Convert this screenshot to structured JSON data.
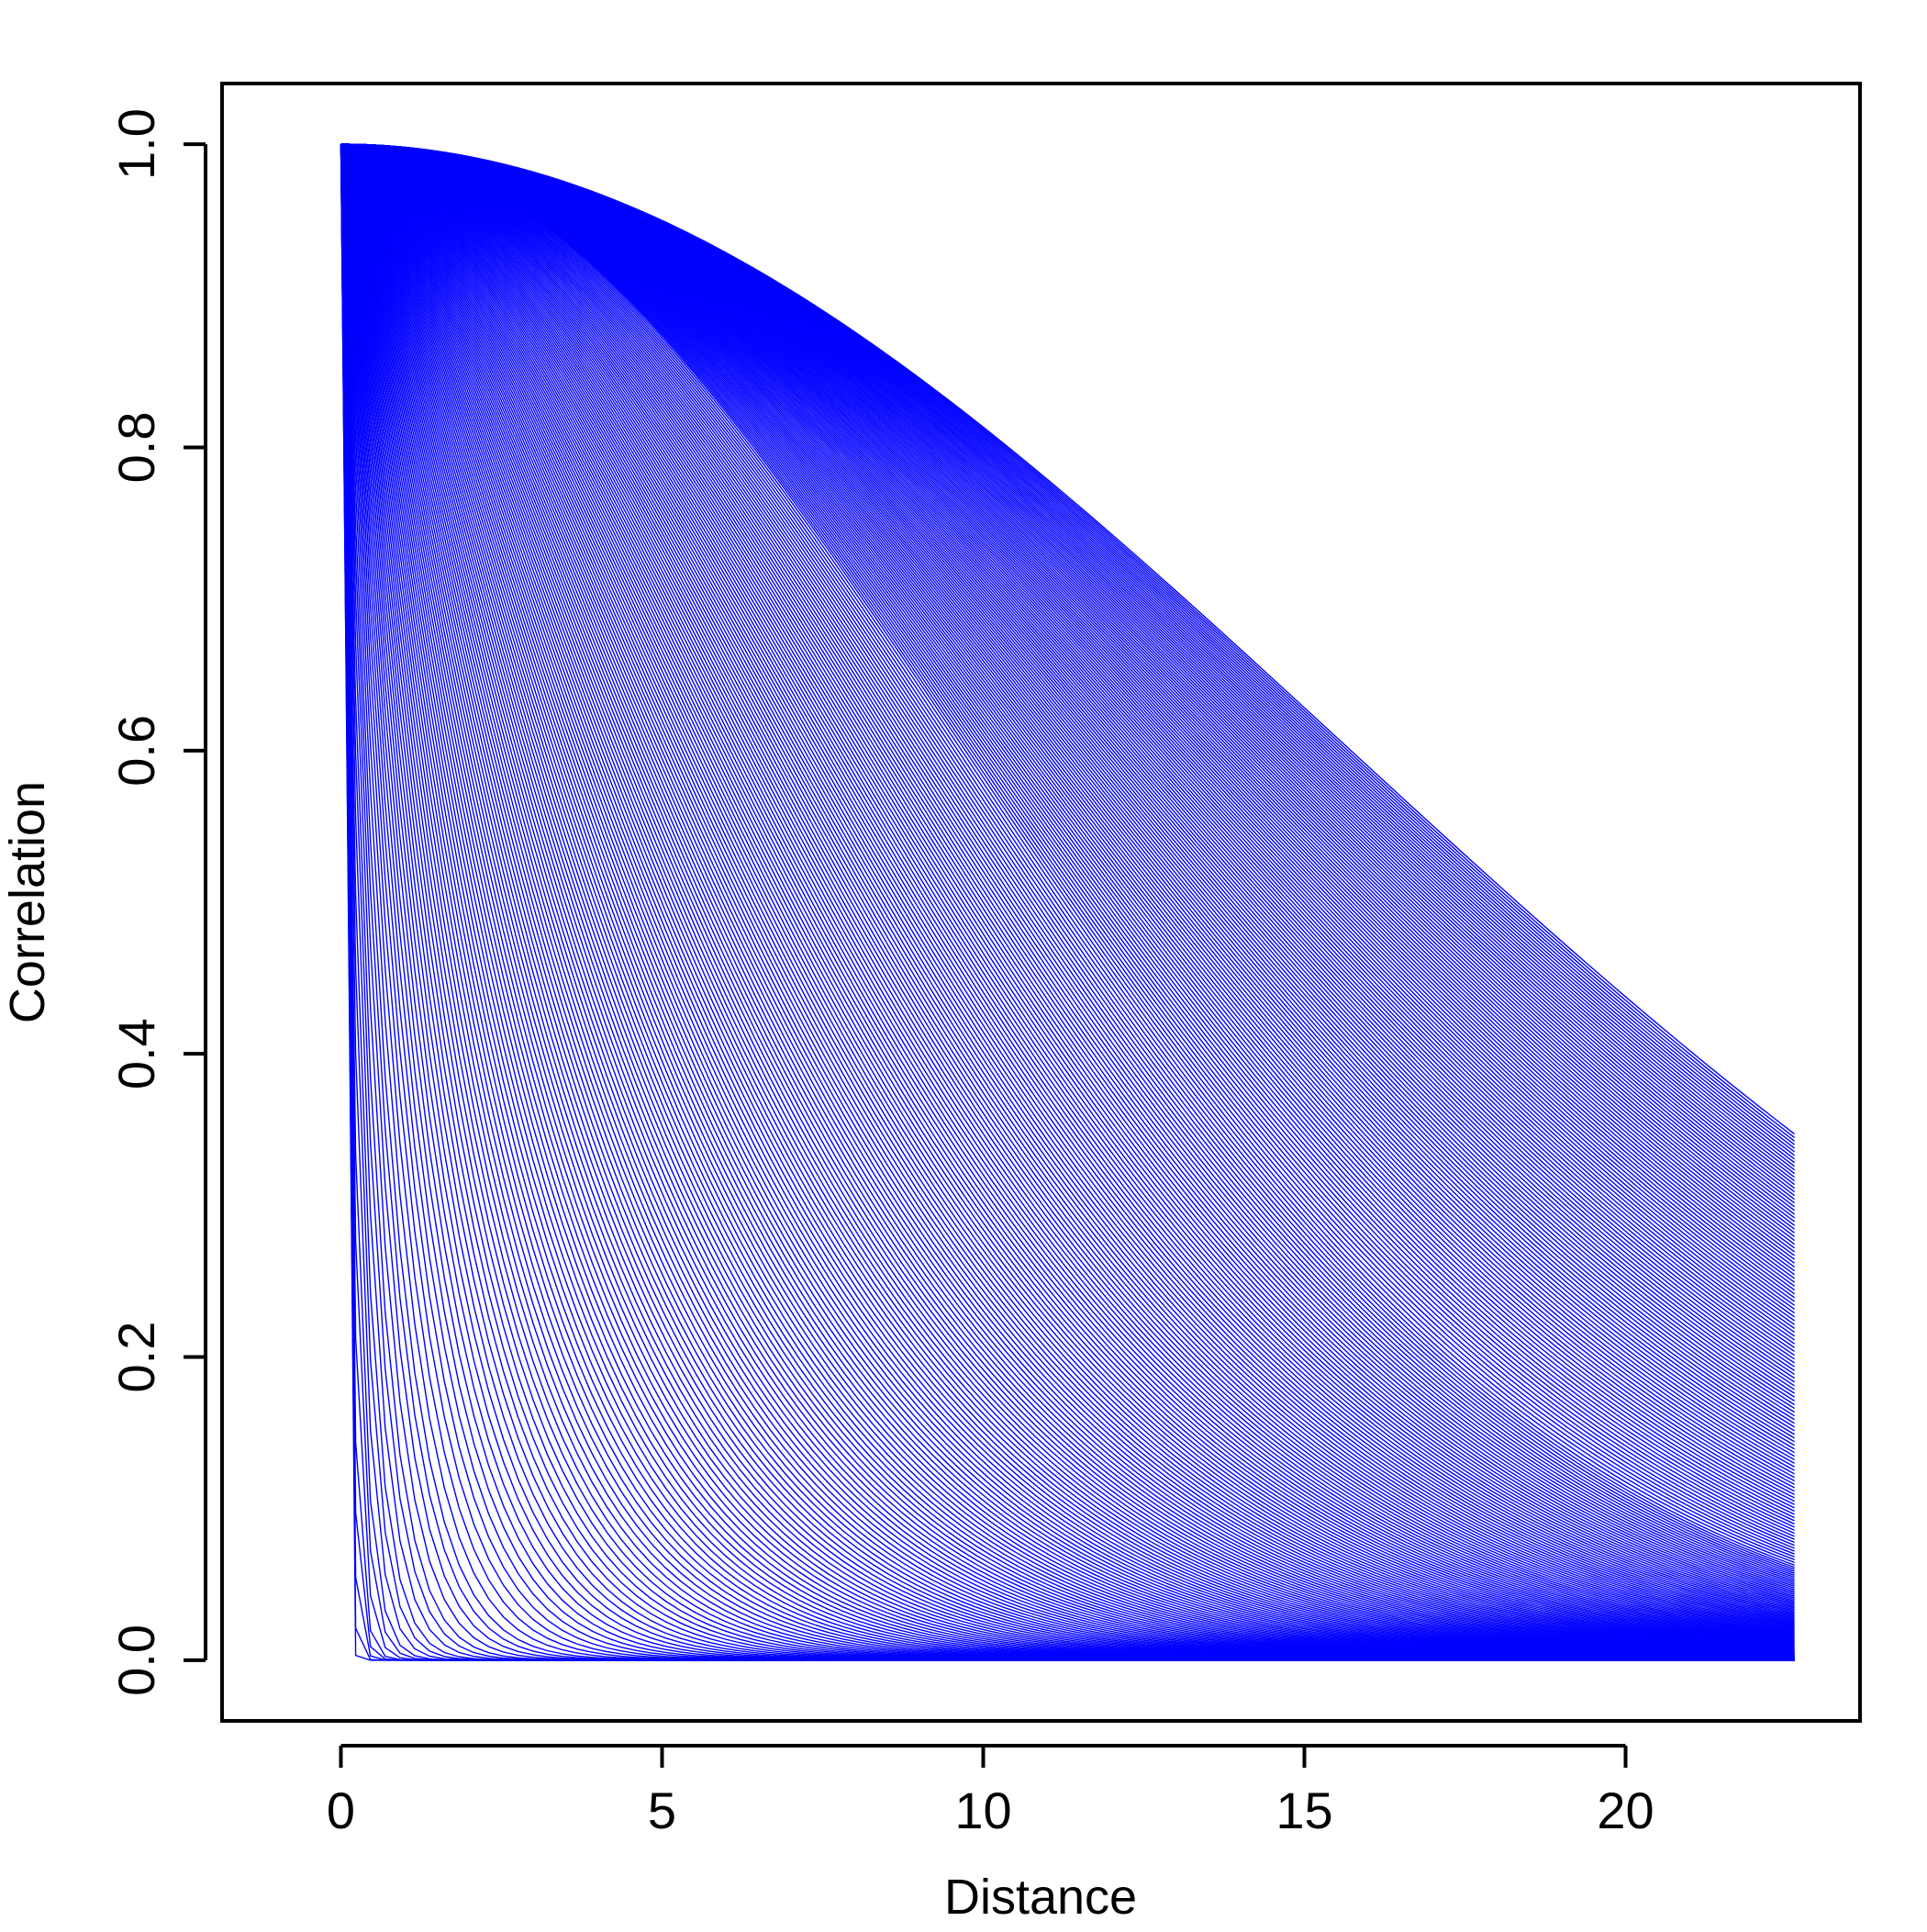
{
  "chart_data": {
    "type": "line",
    "title": "",
    "xlabel": "Distance",
    "ylabel": "Correlation",
    "xlim": [
      -1.85,
      23.65
    ],
    "ylim": [
      -0.04,
      1.04
    ],
    "x_ticks": [
      0,
      5,
      10,
      15,
      20
    ],
    "x_tick_labels": [
      "0",
      "5",
      "10",
      "15",
      "20"
    ],
    "y_ticks": [
      0.0,
      0.2,
      0.4,
      0.6,
      0.8,
      1.0
    ],
    "y_tick_labels": [
      "0.0",
      "0.2",
      "0.4",
      "0.6",
      "0.8",
      "1.0"
    ],
    "grid": false,
    "legend": "none",
    "line_color": "#0000ff",
    "sample_x": [
      0,
      0.23,
      0.46,
      0.69,
      0.92,
      1.15,
      1.38,
      1.61,
      1.84,
      2.07,
      2.3,
      2.53,
      2.76,
      2.99,
      3.22,
      3.45,
      3.68,
      3.91,
      4.14,
      4.37,
      4.6,
      4.83,
      5.06,
      5.29,
      5.52,
      5.75,
      5.98,
      6.21,
      6.44,
      6.67,
      6.9,
      7.13,
      7.36,
      7.59,
      7.82,
      8.05,
      8.28,
      8.51,
      8.74,
      8.97,
      9.2,
      9.43,
      9.66,
      9.89,
      10.12,
      10.35,
      10.58,
      10.81,
      11.04,
      11.27,
      11.5,
      11.73,
      11.96,
      12.19,
      12.42,
      12.65,
      12.88,
      13.11,
      13.34,
      13.57,
      13.8,
      14.03,
      14.26,
      14.49,
      14.72,
      14.95,
      15.18,
      15.41,
      15.64,
      15.87,
      16.1,
      16.33,
      16.56,
      16.79,
      17.02,
      17.25,
      17.48,
      17.71,
      17.94,
      18.17,
      18.4,
      18.63,
      18.86,
      19.09,
      19.32,
      19.55,
      19.78,
      20.01,
      20.24,
      20.47,
      20.7,
      20.93,
      21.16,
      21.39,
      21.62,
      21.85,
      22.08,
      22.31,
      22.54,
      22.63
    ],
    "series_ranges": [
      0.04,
      0.06,
      0.08,
      0.1,
      0.12,
      0.15,
      0.18,
      0.21,
      0.25,
      0.29,
      0.33,
      0.38,
      0.43,
      0.48,
      0.54,
      0.6,
      0.66,
      0.72,
      0.79,
      0.86,
      0.93,
      1.0,
      1.07,
      1.14,
      1.21,
      1.28,
      1.35,
      1.42,
      1.49,
      1.56,
      1.63,
      1.7,
      1.77,
      1.84,
      1.91,
      1.98,
      2.05,
      2.12,
      2.19,
      2.26,
      2.33,
      2.4,
      2.47,
      2.54,
      2.61,
      2.68,
      2.75,
      2.82,
      2.89,
      2.96,
      3.03,
      3.1,
      3.17,
      3.24,
      3.31,
      3.38,
      3.45,
      3.52,
      3.59,
      3.66,
      3.73,
      3.8,
      3.87,
      3.94,
      4.01,
      4.08,
      4.15,
      4.22,
      4.29,
      4.36,
      4.43,
      4.5,
      4.57,
      4.64,
      4.71,
      4.78,
      4.85,
      4.92,
      4.99,
      5.06,
      5.13,
      5.2,
      5.27,
      5.34,
      5.41,
      5.48,
      5.55,
      5.62,
      5.69,
      5.76,
      5.83,
      5.9,
      5.97,
      6.04,
      6.11,
      6.18,
      6.25,
      6.32,
      6.39,
      6.46,
      6.53,
      6.6,
      6.67,
      6.74,
      6.81,
      6.88,
      6.95,
      7.02,
      7.09,
      7.16,
      7.23,
      7.3,
      7.37,
      7.44,
      7.51,
      7.58,
      7.65,
      7.72,
      7.79,
      7.86,
      7.93,
      8.0,
      8.07,
      8.14,
      8.21,
      8.28,
      8.35,
      8.42,
      8.49,
      8.56,
      8.63,
      8.7,
      8.77,
      8.84,
      8.91,
      8.98,
      9.05,
      9.12,
      9.19,
      9.26,
      9.33,
      9.4,
      9.47,
      9.54,
      9.61,
      9.68,
      9.75,
      9.82,
      9.89,
      9.96,
      10.03,
      10.1,
      10.17,
      10.24,
      10.31,
      10.38,
      10.45,
      10.52,
      10.59,
      10.66,
      10.73,
      10.8,
      10.87,
      10.94,
      11.01,
      11.08,
      11.15,
      11.22,
      11.29,
      11.36,
      11.43,
      11.5,
      11.57,
      11.64,
      11.71,
      11.78,
      11.85,
      11.92,
      11.99,
      12.06,
      12.13,
      12.2,
      12.27,
      12.34,
      12.41,
      12.48,
      12.55,
      12.62,
      12.69,
      12.76,
      12.83,
      12.9,
      12.97,
      13.04,
      13.11,
      13.18,
      13.25,
      13.32,
      13.39,
      13.46,
      13.53,
      13.6,
      13.67,
      13.74,
      13.81,
      13.88,
      13.95,
      14.02,
      14.09,
      14.16,
      14.23,
      14.3,
      14.37,
      14.44,
      14.51,
      14.58,
      14.65,
      14.72,
      14.79,
      14.86,
      14.93,
      15.0,
      15.07,
      15.14,
      15.21,
      15.28,
      15.35,
      15.42,
      15.49,
      15.56,
      15.63,
      15.7,
      15.77,
      15.84,
      15.91,
      15.98,
      16.05,
      16.12,
      16.19,
      16.26,
      16.33,
      16.4,
      16.47,
      16.54,
      16.61,
      16.68,
      16.75,
      16.82,
      16.89,
      16.96,
      17.03,
      17.1,
      17.17,
      17.24,
      17.31,
      17.38,
      17.45,
      17.52,
      17.59,
      17.66,
      17.73,
      17.8,
      17.87,
      17.94,
      18.01,
      18.08,
      18.15,
      18.22,
      18.29,
      18.36,
      18.43,
      18.5,
      18.57,
      18.64,
      18.71,
      18.78,
      18.85,
      18.92,
      18.99,
      19.06,
      19.13,
      19.2,
      19.27,
      19.34,
      19.41,
      19.48,
      19.55,
      19.62,
      19.69,
      19.76,
      19.83,
      19.9,
      19.97,
      20.04,
      20.11,
      20.18,
      20.25,
      20.32,
      20.39,
      20.46,
      20.53,
      20.6,
      20.67,
      20.74,
      20.81,
      20.88,
      20.95,
      21.02,
      21.09,
      21.16,
      21.23,
      21.3,
      21.37,
      21.44,
      21.51,
      21.58,
      21.65,
      21.72,
      21.79,
      21.86,
      21.93,
      22.0
    ]
  }
}
